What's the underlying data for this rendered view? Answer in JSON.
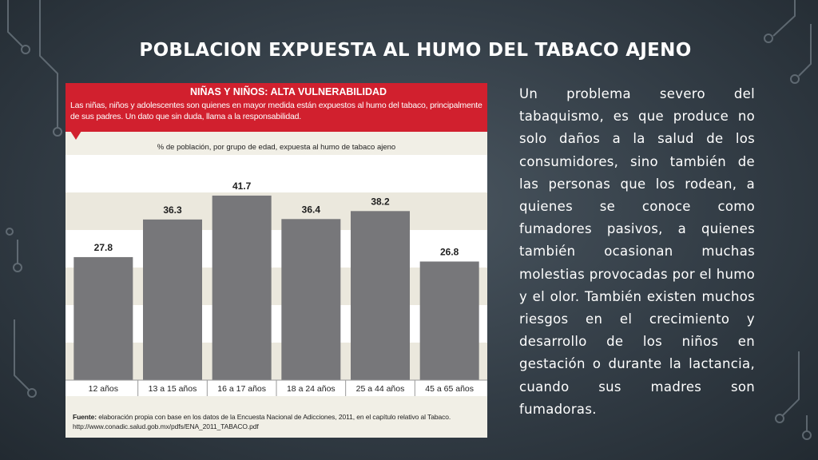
{
  "title": "POBLACION EXPUESTA AL HUMO DEL TABACO AJENO",
  "infographic": {
    "heading": "NIÑAS Y NIÑOS: ALTA VULNERABILIDAD",
    "intro": "Las niñas, niños y adolescentes son quienes en mayor medida están expuestos al humo del tabaco, principalmente de sus padres. Un dato que sin duda, llama a la responsabilidad.",
    "source_label": "Fuente:",
    "source_text": "elaboración propia con base en los datos de la Encuesta Nacional de Adicciones, 2011, en el capítulo relativo al Tabaco.",
    "source_url": "http://www.conadic.salud.gob.mx/pdfs/ENA_2011_TABACO.pdf"
  },
  "chart_data": {
    "type": "bar",
    "title": "% de población, por grupo de edad, expuesta al humo de tabaco ajeno",
    "categories": [
      "12 años",
      "13 a 15 años",
      "16 a 17 años",
      "18 a 24 años",
      "25 a 44 años",
      "45 a 65 años"
    ],
    "values": [
      27.8,
      36.3,
      41.7,
      36.4,
      38.2,
      26.8
    ],
    "value_labels": [
      "27.8",
      "36.3",
      "41.7",
      "36.4",
      "38.2",
      "26.8"
    ],
    "ylim": [
      0,
      48
    ],
    "grid": "alternating horizontal bands",
    "colors": {
      "bar": "#77777a",
      "band_light": "#ffffff",
      "band_dark": "#ebe8dd",
      "header_red": "#d1202e"
    }
  },
  "body_text": "Un problema severo del tabaquismo, es que produce no solo daños a la salud de los consumidores, sino también de las personas que los rodean, a quienes se conoce como fumadores pasivos, a quienes también ocasionan muchas molestias provocadas por el humo y el olor. También existen muchos riesgos en el crecimiento y desarrollo de los niños en gestación o durante la lactancia, cuando sus madres son fumadoras."
}
